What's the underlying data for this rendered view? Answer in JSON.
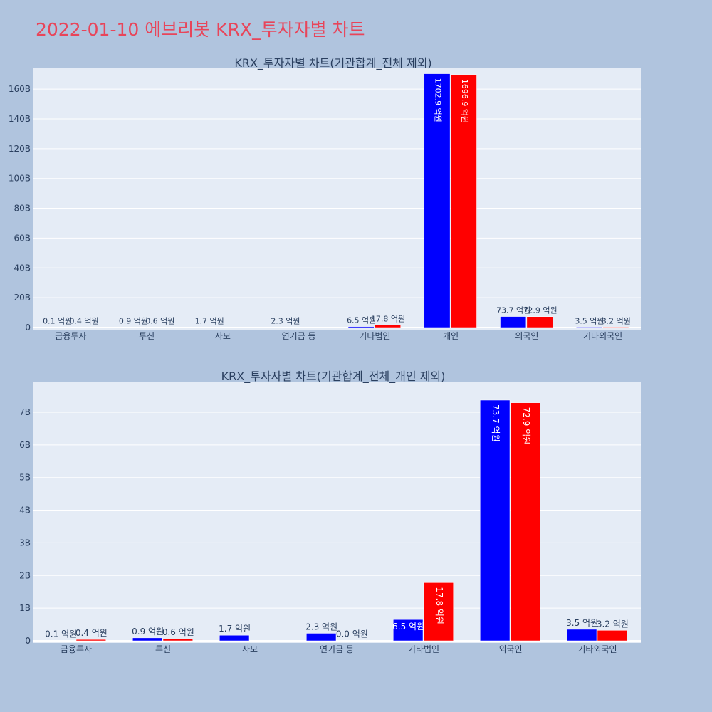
{
  "page": {
    "title": "2022-01-10 에브리봇 KRX_투자자별 차트"
  },
  "colors": {
    "page_background": "#b0c4de",
    "plot_background": "#e5ecf6",
    "gridline": "#ffffff",
    "series_buy": "#0000ff",
    "series_sell": "#ff0000",
    "title_color": "#e8455a",
    "text_color": "#2a3f5f"
  },
  "chart_data": [
    {
      "type": "bar",
      "title": "KRX_투자자별 차트(기관합계_전체 제외)",
      "categories": [
        "금융투자",
        "투신",
        "사모",
        "연기금 등",
        "기타법인",
        "개인",
        "외국인",
        "기타외국인"
      ],
      "ylim": [
        0,
        172
      ],
      "y_ticks": [
        0,
        20,
        40,
        60,
        80,
        100,
        120,
        140,
        160
      ],
      "y_tick_labels": [
        "0",
        "20B",
        "40B",
        "60B",
        "80B",
        "100B",
        "120B",
        "140B",
        "160B"
      ],
      "grid": true,
      "series": [
        {
          "color": "#0000ff",
          "values": [
            0.01,
            0.09,
            0.17,
            0.23,
            0.65,
            170.29,
            7.37,
            0.35
          ],
          "labels": [
            "0.1 억원",
            "0.9 억원",
            "1.7 억원",
            "2.3 억원",
            "6.5 억원",
            "1702.9 억원",
            "73.7 억원",
            "3.5 억원"
          ]
        },
        {
          "color": "#ff0000",
          "values": [
            0.04,
            0.06,
            null,
            null,
            1.78,
            169.69,
            7.29,
            0.32
          ],
          "labels": [
            "0.4 억원",
            "0.6 억원",
            "",
            "",
            "17.8 억원",
            "1696.9 억원",
            "72.9 억원",
            "3.2 억원"
          ]
        }
      ]
    },
    {
      "type": "bar",
      "title": "KRX_투자자별 차트(기관합계_전체_개인 제외)",
      "categories": [
        "금융투자",
        "투신",
        "사모",
        "연기금 등",
        "기타법인",
        "외국인",
        "기타외국인"
      ],
      "ylim": [
        0,
        7.85
      ],
      "y_ticks": [
        0,
        1,
        2,
        3,
        4,
        5,
        6,
        7
      ],
      "y_tick_labels": [
        "0",
        "1B",
        "2B",
        "3B",
        "4B",
        "5B",
        "6B",
        "7B"
      ],
      "grid": true,
      "series": [
        {
          "color": "#0000ff",
          "values": [
            0.01,
            0.09,
            0.17,
            0.23,
            0.65,
            7.37,
            0.35
          ],
          "labels": [
            "0.1 억원",
            "0.9 억원",
            "1.7 억원",
            "2.3 억원",
            "6.5 억원",
            "73.7 억원",
            "3.5 억원"
          ]
        },
        {
          "color": "#ff0000",
          "values": [
            0.04,
            0.06,
            null,
            0.0,
            1.78,
            7.29,
            0.32
          ],
          "labels": [
            "0.4 억원",
            "0.6 억원",
            "",
            "0.0 억원",
            "17.8 억원",
            "72.9 억원",
            "3.2 억원"
          ]
        }
      ]
    }
  ]
}
